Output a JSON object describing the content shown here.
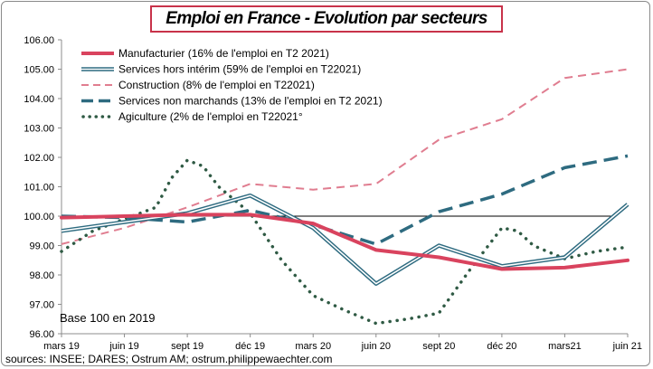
{
  "title": "Emploi en France - Evolution par secteurs",
  "base_note": "Base 100 en 2019",
  "source": "sources: INSEE; DARES; Ostrum AM;  ostrum.philippewaechter.com",
  "colors": {
    "manufacturier": "#d9435e",
    "services_hors_interim": "#2e6b80",
    "construction": "#e07d90",
    "services_non_marchands": "#2e6b80",
    "agriculture": "#2f5a44",
    "baseline": "#000000"
  },
  "chart_data": {
    "type": "line",
    "title": "Emploi en France - Evolution par secteurs",
    "xlabel": "",
    "ylabel": "",
    "x_ticks": [
      "mars 19",
      "juin 19",
      "sept 19",
      "déc 19",
      "mars 20",
      "juin 20",
      "sept 20",
      "déc 20",
      "mars21",
      "juin 21"
    ],
    "y_ticks": [
      "96.00",
      "97.00",
      "98.00",
      "99.00",
      "100.00",
      "101.00",
      "102.00",
      "103.00",
      "104.00",
      "105.00",
      "106.00"
    ],
    "ylim": [
      96,
      106
    ],
    "reference_line": 100,
    "legend_position": "top-left",
    "grid": false,
    "series": [
      {
        "name": "Manufacturier (16% de l'emploi en T2 2021)",
        "style": "solid-thick",
        "points": [
          [
            0,
            99.95
          ],
          [
            1,
            100.0
          ],
          [
            2,
            100.05
          ],
          [
            3,
            100.05
          ],
          [
            4,
            99.75
          ],
          [
            5,
            98.85
          ],
          [
            6,
            98.6
          ],
          [
            7,
            98.2
          ],
          [
            8,
            98.25
          ],
          [
            9,
            98.5
          ]
        ]
      },
      {
        "name": "Services hors intérim (59% de l'emploi en T22021)",
        "style": "double",
        "points": [
          [
            0,
            99.5
          ],
          [
            1,
            99.8
          ],
          [
            2,
            100.1
          ],
          [
            3,
            100.7
          ],
          [
            4,
            99.6
          ],
          [
            5,
            97.7
          ],
          [
            6,
            99.0
          ],
          [
            7,
            98.3
          ],
          [
            8,
            98.6
          ],
          [
            9,
            100.4
          ]
        ]
      },
      {
        "name": "Construction (8% de l'emploi en T22021)",
        "style": "dashed",
        "points": [
          [
            0,
            99.05
          ],
          [
            1,
            99.6
          ],
          [
            2,
            100.3
          ],
          [
            3,
            101.1
          ],
          [
            4,
            100.9
          ],
          [
            5,
            101.1
          ],
          [
            6,
            102.6
          ],
          [
            7,
            103.3
          ],
          [
            8,
            104.7
          ],
          [
            9,
            105.0
          ]
        ]
      },
      {
        "name": "Services non marchands (13% de l'emploi en T2 2021)",
        "style": "long-dash-thick",
        "points": [
          [
            0,
            100.0
          ],
          [
            1,
            99.95
          ],
          [
            2,
            99.8
          ],
          [
            3,
            100.2
          ],
          [
            4,
            99.7
          ],
          [
            5,
            99.05
          ],
          [
            6,
            100.15
          ],
          [
            7,
            100.75
          ],
          [
            8,
            101.65
          ],
          [
            9,
            102.05
          ]
        ]
      },
      {
        "name": "Agiculture (2% de l'emploi en T22021°",
        "style": "dotted",
        "points": [
          [
            0,
            98.8
          ],
          [
            0.5,
            99.5
          ],
          [
            1,
            99.9
          ],
          [
            1.5,
            100.3
          ],
          [
            1.75,
            101.3
          ],
          [
            2,
            101.9
          ],
          [
            2.25,
            101.7
          ],
          [
            2.5,
            101.0
          ],
          [
            3,
            100.1
          ],
          [
            3.5,
            98.5
          ],
          [
            4,
            97.3
          ],
          [
            4.5,
            96.8
          ],
          [
            5,
            96.35
          ],
          [
            5.5,
            96.5
          ],
          [
            6,
            96.7
          ],
          [
            6.5,
            98.2
          ],
          [
            7,
            99.6
          ],
          [
            7.25,
            99.5
          ],
          [
            7.5,
            99.0
          ],
          [
            8,
            98.55
          ],
          [
            8.5,
            98.8
          ],
          [
            9,
            98.95
          ]
        ]
      }
    ]
  }
}
